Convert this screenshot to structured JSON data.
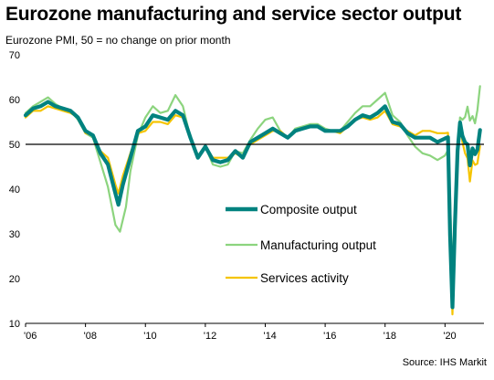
{
  "title": "Eurozone manufacturing and service sector output",
  "subtitle": "Eurozone PMI, 50 = no change on prior month",
  "source": "Source: IHS Markit",
  "chart_data": {
    "type": "line",
    "title": "Eurozone manufacturing and service sector output",
    "subtitle": "Eurozone PMI, 50 = no change on prior month",
    "ylim": [
      10,
      70
    ],
    "yticks": [
      10,
      20,
      30,
      40,
      50,
      60,
      70
    ],
    "xlim": [
      2006.0,
      2021.3
    ],
    "xticks": [
      2006,
      2008,
      2010,
      2012,
      2014,
      2016,
      2018,
      2020
    ],
    "xtick_labels": [
      "'06",
      "'08",
      "'10",
      "'12",
      "'14",
      "'16",
      "'18",
      "'20"
    ],
    "reference_line": 50,
    "grid": false,
    "legend": "center-right",
    "series": [
      {
        "name": "Composite output",
        "color": "#00827f",
        "points": [
          [
            2006.0,
            56.5
          ],
          [
            2006.25,
            58.0
          ],
          [
            2006.5,
            58.5
          ],
          [
            2006.75,
            59.5
          ],
          [
            2007.0,
            58.5
          ],
          [
            2007.25,
            58.0
          ],
          [
            2007.5,
            57.5
          ],
          [
            2007.75,
            56.0
          ],
          [
            2008.0,
            53.0
          ],
          [
            2008.25,
            52.0
          ],
          [
            2008.5,
            48.0
          ],
          [
            2008.75,
            45.5
          ],
          [
            2009.0,
            39.0
          ],
          [
            2009.1,
            36.5
          ],
          [
            2009.25,
            41.0
          ],
          [
            2009.5,
            47.0
          ],
          [
            2009.75,
            53.0
          ],
          [
            2010.0,
            54.0
          ],
          [
            2010.25,
            56.5
          ],
          [
            2010.5,
            56.0
          ],
          [
            2010.75,
            55.5
          ],
          [
            2011.0,
            57.5
          ],
          [
            2011.25,
            56.5
          ],
          [
            2011.5,
            51.5
          ],
          [
            2011.75,
            47.0
          ],
          [
            2012.0,
            49.5
          ],
          [
            2012.25,
            46.5
          ],
          [
            2012.5,
            46.0
          ],
          [
            2012.75,
            46.5
          ],
          [
            2013.0,
            48.5
          ],
          [
            2013.25,
            47.0
          ],
          [
            2013.5,
            50.5
          ],
          [
            2013.75,
            51.5
          ],
          [
            2014.0,
            52.5
          ],
          [
            2014.25,
            53.5
          ],
          [
            2014.5,
            52.5
          ],
          [
            2014.75,
            51.5
          ],
          [
            2015.0,
            53.0
          ],
          [
            2015.25,
            53.5
          ],
          [
            2015.5,
            54.0
          ],
          [
            2015.75,
            54.0
          ],
          [
            2016.0,
            53.0
          ],
          [
            2016.25,
            53.0
          ],
          [
            2016.5,
            53.0
          ],
          [
            2016.75,
            54.0
          ],
          [
            2017.0,
            55.5
          ],
          [
            2017.25,
            56.5
          ],
          [
            2017.5,
            56.0
          ],
          [
            2017.75,
            57.0
          ],
          [
            2018.0,
            58.5
          ],
          [
            2018.25,
            55.0
          ],
          [
            2018.5,
            54.5
          ],
          [
            2018.75,
            52.5
          ],
          [
            2019.0,
            51.5
          ],
          [
            2019.25,
            51.5
          ],
          [
            2019.5,
            51.5
          ],
          [
            2019.75,
            50.5
          ],
          [
            2020.0,
            51.3
          ],
          [
            2020.1,
            51.6
          ],
          [
            2020.17,
            29.7
          ],
          [
            2020.25,
            13.6
          ],
          [
            2020.33,
            31.9
          ],
          [
            2020.42,
            48.5
          ],
          [
            2020.5,
            54.9
          ],
          [
            2020.58,
            51.9
          ],
          [
            2020.67,
            50.4
          ],
          [
            2020.75,
            50.0
          ],
          [
            2020.83,
            45.3
          ],
          [
            2020.92,
            49.1
          ],
          [
            2021.0,
            47.8
          ],
          [
            2021.08,
            48.8
          ],
          [
            2021.17,
            53.2
          ]
        ]
      },
      {
        "name": "Manufacturing output",
        "color": "#8cd47e",
        "points": [
          [
            2006.0,
            57.0
          ],
          [
            2006.25,
            58.5
          ],
          [
            2006.5,
            59.5
          ],
          [
            2006.75,
            60.5
          ],
          [
            2007.0,
            59.0
          ],
          [
            2007.25,
            58.0
          ],
          [
            2007.5,
            57.5
          ],
          [
            2007.75,
            55.5
          ],
          [
            2008.0,
            52.5
          ],
          [
            2008.25,
            51.5
          ],
          [
            2008.5,
            46.0
          ],
          [
            2008.75,
            40.5
          ],
          [
            2009.0,
            32.0
          ],
          [
            2009.15,
            30.5
          ],
          [
            2009.35,
            36.0
          ],
          [
            2009.5,
            44.0
          ],
          [
            2009.75,
            52.0
          ],
          [
            2010.0,
            56.0
          ],
          [
            2010.25,
            58.5
          ],
          [
            2010.5,
            57.0
          ],
          [
            2010.75,
            57.5
          ],
          [
            2011.0,
            61.0
          ],
          [
            2011.25,
            58.5
          ],
          [
            2011.5,
            51.5
          ],
          [
            2011.75,
            47.5
          ],
          [
            2012.0,
            49.5
          ],
          [
            2012.25,
            45.5
          ],
          [
            2012.5,
            45.0
          ],
          [
            2012.75,
            45.5
          ],
          [
            2013.0,
            48.5
          ],
          [
            2013.25,
            48.0
          ],
          [
            2013.5,
            51.0
          ],
          [
            2013.75,
            53.5
          ],
          [
            2014.0,
            55.5
          ],
          [
            2014.25,
            56.0
          ],
          [
            2014.5,
            53.0
          ],
          [
            2014.75,
            51.5
          ],
          [
            2015.0,
            53.5
          ],
          [
            2015.25,
            54.0
          ],
          [
            2015.5,
            54.5
          ],
          [
            2015.75,
            54.5
          ],
          [
            2016.0,
            53.5
          ],
          [
            2016.25,
            53.0
          ],
          [
            2016.5,
            53.0
          ],
          [
            2016.75,
            55.0
          ],
          [
            2017.0,
            57.0
          ],
          [
            2017.25,
            58.5
          ],
          [
            2017.5,
            58.5
          ],
          [
            2017.75,
            60.0
          ],
          [
            2018.0,
            61.5
          ],
          [
            2018.25,
            56.5
          ],
          [
            2018.5,
            55.0
          ],
          [
            2018.75,
            52.0
          ],
          [
            2019.0,
            49.5
          ],
          [
            2019.25,
            48.0
          ],
          [
            2019.5,
            47.5
          ],
          [
            2019.75,
            46.5
          ],
          [
            2020.0,
            47.5
          ],
          [
            2020.1,
            48.7
          ],
          [
            2020.17,
            38.5
          ],
          [
            2020.25,
            18.1
          ],
          [
            2020.33,
            26.9
          ],
          [
            2020.42,
            47.0
          ],
          [
            2020.5,
            56.0
          ],
          [
            2020.58,
            55.5
          ],
          [
            2020.67,
            56.1
          ],
          [
            2020.75,
            58.4
          ],
          [
            2020.83,
            55.3
          ],
          [
            2020.92,
            56.3
          ],
          [
            2021.0,
            54.7
          ],
          [
            2021.08,
            57.6
          ],
          [
            2021.17,
            63.0
          ]
        ]
      },
      {
        "name": "Services activity",
        "color": "#f5c400",
        "points": [
          [
            2006.0,
            56.0
          ],
          [
            2006.25,
            57.5
          ],
          [
            2006.5,
            57.5
          ],
          [
            2006.75,
            58.5
          ],
          [
            2007.0,
            58.0
          ],
          [
            2007.25,
            57.5
          ],
          [
            2007.5,
            57.0
          ],
          [
            2007.75,
            56.0
          ],
          [
            2008.0,
            52.5
          ],
          [
            2008.25,
            52.0
          ],
          [
            2008.5,
            48.5
          ],
          [
            2008.75,
            47.0
          ],
          [
            2009.0,
            41.0
          ],
          [
            2009.1,
            39.0
          ],
          [
            2009.25,
            43.0
          ],
          [
            2009.5,
            48.0
          ],
          [
            2009.75,
            52.5
          ],
          [
            2010.0,
            53.0
          ],
          [
            2010.25,
            55.0
          ],
          [
            2010.5,
            55.0
          ],
          [
            2010.75,
            54.5
          ],
          [
            2011.0,
            56.5
          ],
          [
            2011.25,
            56.0
          ],
          [
            2011.5,
            51.5
          ],
          [
            2011.75,
            47.5
          ],
          [
            2012.0,
            49.5
          ],
          [
            2012.25,
            47.0
          ],
          [
            2012.5,
            47.0
          ],
          [
            2012.75,
            47.0
          ],
          [
            2013.0,
            48.0
          ],
          [
            2013.25,
            47.0
          ],
          [
            2013.5,
            50.0
          ],
          [
            2013.75,
            51.0
          ],
          [
            2014.0,
            52.0
          ],
          [
            2014.25,
            53.0
          ],
          [
            2014.5,
            53.0
          ],
          [
            2014.75,
            51.5
          ],
          [
            2015.0,
            53.0
          ],
          [
            2015.25,
            53.5
          ],
          [
            2015.5,
            54.0
          ],
          [
            2015.75,
            54.0
          ],
          [
            2016.0,
            53.0
          ],
          [
            2016.25,
            53.0
          ],
          [
            2016.5,
            52.5
          ],
          [
            2016.75,
            54.0
          ],
          [
            2017.0,
            55.5
          ],
          [
            2017.25,
            56.0
          ],
          [
            2017.5,
            55.5
          ],
          [
            2017.75,
            56.0
          ],
          [
            2018.0,
            57.5
          ],
          [
            2018.25,
            54.5
          ],
          [
            2018.5,
            54.0
          ],
          [
            2018.75,
            53.0
          ],
          [
            2019.0,
            52.0
          ],
          [
            2019.25,
            53.0
          ],
          [
            2019.5,
            53.0
          ],
          [
            2019.75,
            52.5
          ],
          [
            2020.0,
            52.5
          ],
          [
            2020.1,
            52.6
          ],
          [
            2020.17,
            26.4
          ],
          [
            2020.25,
            12.0
          ],
          [
            2020.33,
            30.5
          ],
          [
            2020.42,
            48.3
          ],
          [
            2020.5,
            54.7
          ],
          [
            2020.58,
            50.5
          ],
          [
            2020.67,
            48.0
          ],
          [
            2020.75,
            46.9
          ],
          [
            2020.83,
            41.7
          ],
          [
            2020.92,
            46.4
          ],
          [
            2021.0,
            45.4
          ],
          [
            2021.08,
            45.7
          ],
          [
            2021.17,
            49.6
          ]
        ]
      }
    ]
  }
}
